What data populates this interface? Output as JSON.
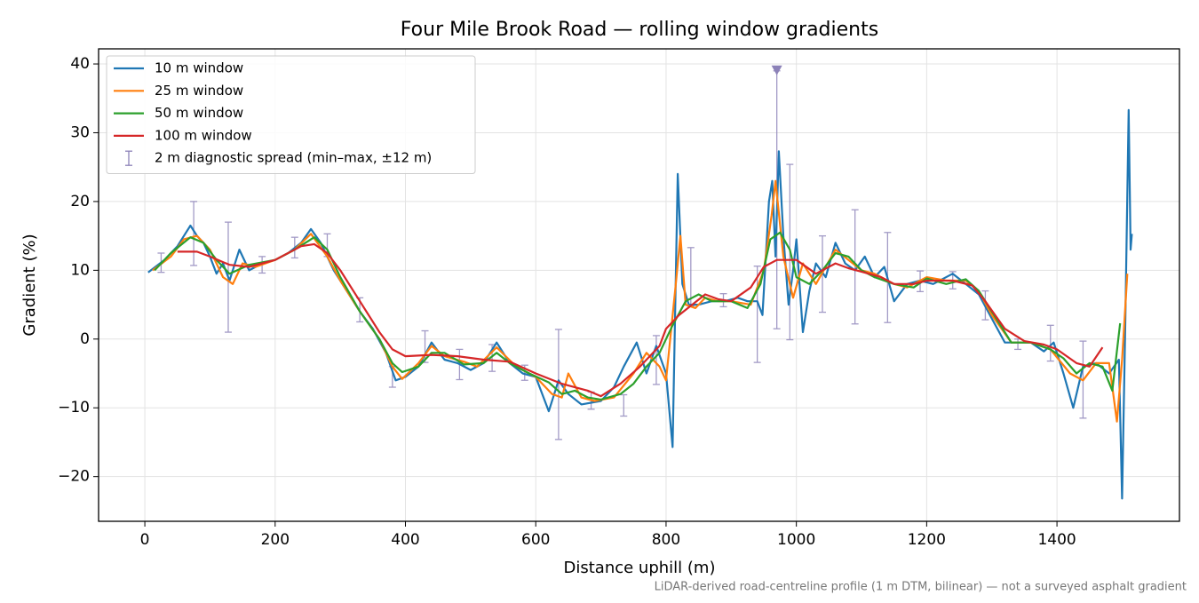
{
  "chart_data": {
    "type": "line",
    "title": "Four Mile Brook Road — rolling window gradients",
    "xlabel": "Distance uphill (m)",
    "ylabel": "Gradient (%)",
    "footnote": "LiDAR-derived road-centreline profile (1 m DTM, bilinear) — not a surveyed asphalt gradient",
    "xlim": [
      -71,
      1588
    ],
    "ylim": [
      -26.5,
      42.2
    ],
    "xticks": [
      0,
      200,
      400,
      600,
      800,
      1000,
      1200,
      1400
    ],
    "yticks": [
      {
        "value": -20,
        "label": "−20"
      },
      {
        "value": -10,
        "label": "−10"
      },
      0,
      10,
      20,
      30,
      40
    ],
    "grid": true,
    "legend": "upper left",
    "series": [
      {
        "name": "10 m window",
        "color": "#1f77b4",
        "x": [
          5,
          30,
          50,
          60,
          70,
          80,
          90,
          100,
          110,
          120,
          130,
          145,
          160,
          180,
          200,
          220,
          240,
          255,
          270,
          290,
          310,
          330,
          350,
          370,
          385,
          400,
          420,
          440,
          460,
          480,
          500,
          520,
          540,
          560,
          580,
          600,
          620,
          635,
          650,
          670,
          700,
          720,
          735,
          755,
          770,
          785,
          800,
          810,
          818,
          825,
          835,
          850,
          870,
          890,
          910,
          925,
          940,
          948,
          958,
          963,
          968,
          973,
          980,
          988,
          995,
          1000,
          1010,
          1020,
          1030,
          1045,
          1060,
          1075,
          1090,
          1105,
          1120,
          1135,
          1150,
          1170,
          1190,
          1210,
          1240,
          1260,
          1280,
          1300,
          1320,
          1340,
          1360,
          1380,
          1395,
          1410,
          1425,
          1440,
          1460,
          1480,
          1495,
          1500,
          1505,
          1510,
          1513,
          1515
        ],
        "values": [
          9.7,
          11.5,
          13.5,
          15,
          16.5,
          15,
          14,
          12,
          9.5,
          11,
          8.5,
          13,
          10,
          11,
          11.5,
          12.5,
          14,
          16,
          14,
          10,
          7,
          4,
          1.5,
          -2,
          -6,
          -5.5,
          -4,
          -0.5,
          -3,
          -3.5,
          -4.5,
          -3.5,
          -0.5,
          -3.5,
          -5,
          -5.5,
          -10.5,
          -6,
          -8,
          -9.5,
          -9,
          -7,
          -4,
          -0.5,
          -5,
          -1,
          -5,
          -15.7,
          24,
          8,
          5,
          5,
          5.5,
          5.5,
          6,
          5.5,
          5.5,
          3.5,
          20,
          23,
          12,
          27.3,
          15,
          5,
          10,
          14.5,
          1,
          7,
          11,
          9,
          14,
          11,
          10,
          12,
          9,
          10.5,
          5.5,
          8,
          8.5,
          8,
          9.5,
          8,
          6.5,
          3,
          -0.5,
          -0.5,
          -0.5,
          -1.8,
          -0.5,
          -5,
          -10,
          -4,
          -3.5,
          -5,
          -3,
          -23.2,
          3,
          33.3,
          13,
          15.3
        ]
      },
      {
        "name": "25 m window",
        "color": "#ff7f0e",
        "x": [
          12,
          40,
          60,
          80,
          100,
          120,
          135,
          150,
          170,
          200,
          230,
          255,
          280,
          300,
          330,
          360,
          380,
          395,
          420,
          440,
          460,
          490,
          510,
          540,
          570,
          600,
          625,
          640,
          650,
          670,
          690,
          720,
          750,
          770,
          790,
          800,
          815,
          822,
          830,
          845,
          860,
          880,
          900,
          930,
          950,
          962,
          968,
          980,
          995,
          1010,
          1030,
          1060,
          1080,
          1100,
          1120,
          1150,
          1170,
          1200,
          1230,
          1260,
          1280,
          1300,
          1330,
          1360,
          1390,
          1420,
          1440,
          1460,
          1480,
          1492,
          1500,
          1508
        ],
        "values": [
          10,
          12,
          14.5,
          15,
          13,
          9,
          8,
          11,
          10.5,
          11.5,
          13,
          15.3,
          12,
          8.5,
          4,
          0,
          -4,
          -5.8,
          -3.5,
          -1,
          -2.5,
          -3.3,
          -4,
          -1.2,
          -4,
          -5.5,
          -8,
          -8.5,
          -5,
          -8.5,
          -9,
          -8.5,
          -5,
          -2,
          -4,
          -6,
          8,
          15,
          5,
          4.5,
          6,
          5.5,
          5.5,
          5,
          10,
          18,
          23,
          12,
          6,
          11,
          8,
          13,
          11.5,
          10,
          9.5,
          8,
          7.5,
          9,
          8.5,
          8.5,
          7,
          3.5,
          -0.5,
          -0.5,
          -1.5,
          -5,
          -6,
          -3.5,
          -3.5,
          -12,
          -3,
          9.5
        ]
      },
      {
        "name": "50 m window",
        "color": "#2ca02c",
        "x": [
          15,
          40,
          70,
          90,
          110,
          130,
          160,
          200,
          230,
          260,
          280,
          300,
          330,
          360,
          380,
          395,
          420,
          440,
          460,
          490,
          520,
          540,
          560,
          590,
          620,
          640,
          660,
          680,
          700,
          730,
          750,
          770,
          790,
          810,
          830,
          850,
          870,
          900,
          925,
          945,
          960,
          975,
          990,
          1000,
          1020,
          1040,
          1060,
          1080,
          1100,
          1120,
          1150,
          1180,
          1200,
          1230,
          1260,
          1280,
          1300,
          1330,
          1360,
          1390,
          1410,
          1430,
          1450,
          1470,
          1485,
          1497
        ],
        "values": [
          10,
          12.5,
          14.8,
          14,
          11.5,
          9.5,
          10.8,
          11.5,
          13,
          14.8,
          13,
          9,
          4,
          0,
          -3.5,
          -4.8,
          -4,
          -2,
          -2,
          -3.7,
          -3.5,
          -2,
          -3.5,
          -5,
          -6.3,
          -8,
          -7.5,
          -8.5,
          -8.8,
          -8,
          -6.5,
          -4,
          -2,
          2,
          5.5,
          6.5,
          5.5,
          5.5,
          4.5,
          8,
          14.5,
          15.5,
          13,
          9,
          8,
          10,
          12.5,
          12,
          10,
          9,
          8,
          7.5,
          8.8,
          8,
          8.7,
          7,
          4,
          -0.5,
          -0.5,
          -1.5,
          -2.8,
          -5,
          -3.5,
          -4,
          -7.5,
          2.3
        ]
      },
      {
        "name": "100 m window",
        "color": "#d62728",
        "x": [
          50,
          80,
          100,
          130,
          160,
          200,
          240,
          260,
          280,
          300,
          330,
          360,
          380,
          400,
          440,
          480,
          520,
          560,
          600,
          640,
          680,
          700,
          730,
          760,
          790,
          800,
          820,
          840,
          860,
          880,
          900,
          930,
          950,
          970,
          1000,
          1030,
          1060,
          1080,
          1100,
          1130,
          1150,
          1180,
          1200,
          1240,
          1270,
          1290,
          1320,
          1350,
          1380,
          1400,
          1430,
          1450,
          1470
        ],
        "values": [
          12.7,
          12.7,
          12,
          10.8,
          10.5,
          11.5,
          13.5,
          13.8,
          12.5,
          10,
          5.5,
          1,
          -1.5,
          -2.5,
          -2.3,
          -2.5,
          -3,
          -3.3,
          -5,
          -6.5,
          -7.5,
          -8.3,
          -6.5,
          -4,
          -1,
          1.5,
          3.5,
          5,
          6.5,
          5.8,
          5.5,
          7.5,
          10.5,
          11.5,
          11.5,
          9.5,
          11,
          10.3,
          9.8,
          9,
          8,
          8,
          8.5,
          8.5,
          7.8,
          5.5,
          1.5,
          -0.3,
          -0.8,
          -1.5,
          -3.5,
          -4,
          -1.2
        ]
      }
    ],
    "errorbars": {
      "name": "2 m diagnostic spread (min–max, ±12 m)",
      "color": "#8c82b8",
      "x": [
        25,
        75,
        128,
        180,
        230,
        280,
        330,
        380,
        430,
        483,
        533,
        583,
        635,
        685,
        735,
        785,
        838,
        888,
        940,
        970,
        990,
        1040,
        1090,
        1140,
        1190,
        1240,
        1290,
        1340,
        1390,
        1440
      ],
      "low": [
        9.7,
        10.7,
        1,
        9.6,
        11.8,
        12,
        2.5,
        -7,
        -3.4,
        -5.9,
        -4.7,
        -6,
        -14.6,
        -10.2,
        -11.2,
        -6.6,
        4.8,
        4.7,
        -3.4,
        1.5,
        -0.1,
        3.9,
        2.2,
        2.4,
        6.9,
        7.3,
        2.8,
        -1.5,
        -3.2,
        -11.5
      ],
      "high": [
        12.5,
        20,
        17,
        12,
        14.8,
        15.3,
        6,
        -4,
        1.2,
        -1.5,
        -0.8,
        -3.8,
        1.4,
        -7.7,
        -8.1,
        0.5,
        13.3,
        6.6,
        10.6,
        39,
        25.4,
        15,
        18.8,
        15.5,
        9.9,
        9.8,
        7,
        0,
        2,
        -0.3
      ]
    },
    "peak_marker": {
      "x": 970,
      "y": 39,
      "color": "#8c82b8"
    }
  }
}
